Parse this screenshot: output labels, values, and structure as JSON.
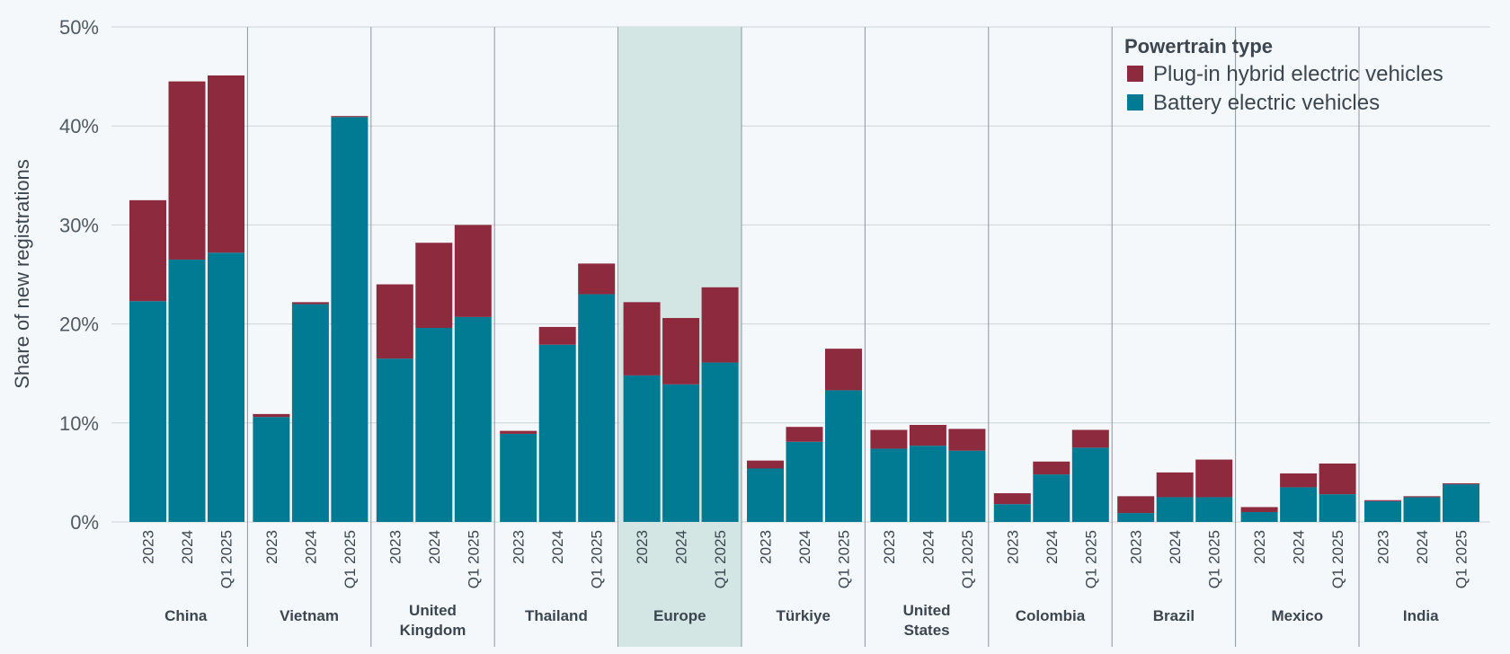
{
  "chart_data": {
    "type": "bar",
    "stacked": true,
    "title": "",
    "xlabel": "",
    "ylabel": "Share of new registrations",
    "ylim": [
      0,
      50
    ],
    "yticks": [
      "0%",
      "10%",
      "20%",
      "30%",
      "40%",
      "50%"
    ],
    "highlight_region": "Europe",
    "legend": {
      "title": "Powertrain type",
      "position": "top-right",
      "entries": [
        {
          "name": "Plug-in hybrid electric vehicles",
          "color": "#8e2a3e"
        },
        {
          "name": "Battery electric vehicles",
          "color": "#007b93"
        }
      ]
    },
    "periods": [
      "2023",
      "2024",
      "Q1 2025"
    ],
    "groups": [
      {
        "region": [
          "China"
        ],
        "bev": [
          22.3,
          26.5,
          27.2
        ],
        "phev": [
          10.2,
          18.0,
          17.9
        ]
      },
      {
        "region": [
          "Vietnam"
        ],
        "bev": [
          10.6,
          22.0,
          40.9
        ],
        "phev": [
          0.3,
          0.2,
          0.1
        ]
      },
      {
        "region": [
          "United",
          "Kingdom"
        ],
        "bev": [
          16.5,
          19.6,
          20.7
        ],
        "phev": [
          7.5,
          8.6,
          9.3
        ]
      },
      {
        "region": [
          "Thailand"
        ],
        "bev": [
          8.9,
          17.9,
          23.0
        ],
        "phev": [
          0.3,
          1.8,
          3.1
        ]
      },
      {
        "region": [
          "Europe"
        ],
        "bev": [
          14.8,
          13.9,
          16.1
        ],
        "phev": [
          7.4,
          6.7,
          7.6
        ]
      },
      {
        "region": [
          "Türkiye"
        ],
        "bev": [
          5.4,
          8.1,
          13.3
        ],
        "phev": [
          0.8,
          1.5,
          4.2
        ]
      },
      {
        "region": [
          "United",
          "States"
        ],
        "bev": [
          7.4,
          7.7,
          7.2
        ],
        "phev": [
          1.9,
          2.1,
          2.2
        ]
      },
      {
        "region": [
          "Colombia"
        ],
        "bev": [
          1.8,
          4.8,
          7.5
        ],
        "phev": [
          1.1,
          1.3,
          1.8
        ]
      },
      {
        "region": [
          "Brazil"
        ],
        "bev": [
          0.9,
          2.5,
          2.5
        ],
        "phev": [
          1.7,
          2.5,
          3.8
        ]
      },
      {
        "region": [
          "Mexico"
        ],
        "bev": [
          1.0,
          3.5,
          2.8
        ],
        "phev": [
          0.5,
          1.4,
          3.1
        ]
      },
      {
        "region": [
          "India"
        ],
        "bev": [
          2.1,
          2.5,
          3.8
        ],
        "phev": [
          0.1,
          0.1,
          0.1
        ]
      }
    ]
  }
}
